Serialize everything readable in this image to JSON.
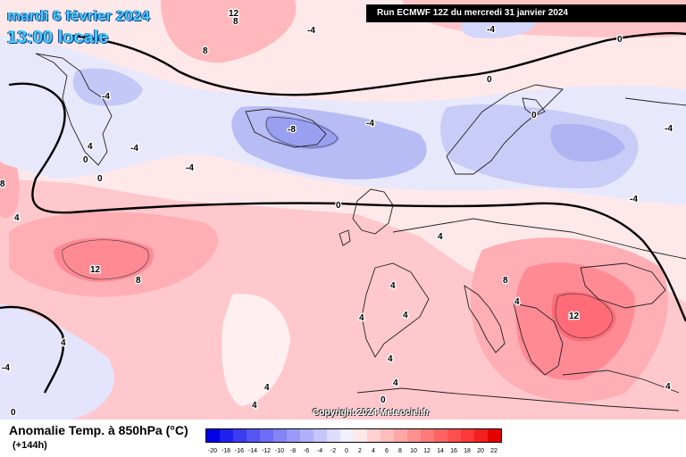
{
  "title": {
    "date": "mardi 6 février 2024",
    "local_time": "13:00 locale"
  },
  "run_info": "Run ECMWF 12Z du mercredi 31 janvier 2024",
  "copyright": "Copyright 2024 Meteociel.fr",
  "legend": {
    "title": "Anomalie Temp. à 850hPa (°C)",
    "subtitle": "(+144h)",
    "ticks": [
      "-20",
      "-18",
      "-16",
      "-14",
      "-12",
      "-10",
      "-8",
      "-6",
      "-4",
      "-2",
      "0",
      "2",
      "4",
      "6",
      "8",
      "10",
      "12",
      "14",
      "16",
      "18",
      "20",
      "22"
    ],
    "colors": [
      "#0000e6",
      "#2020ee",
      "#3c3cf0",
      "#5555f2",
      "#6c6cf4",
      "#8484f6",
      "#9a9af8",
      "#b0b0fa",
      "#c6c6fc",
      "#dcdcfe",
      "#f0f0ff",
      "#ffe8e8",
      "#ffd2d2",
      "#ffbcbc",
      "#ffa6a6",
      "#ff9090",
      "#ff7a7a",
      "#ff6464",
      "#ff4e4e",
      "#ff3838",
      "#f52020",
      "#e60000"
    ]
  },
  "colors": {
    "title_text": "#3fd0ff",
    "run_box_bg": "#000000",
    "warm_anomaly": "#ff8a8a",
    "cold_anomaly": "#9aa0f0"
  },
  "contour_labels": [
    "12",
    "8",
    "4",
    "-4",
    "0",
    "-8",
    "-4",
    "0",
    "4",
    "8",
    "12",
    "4",
    "0",
    "-4",
    "-4",
    "0",
    "-4",
    "12",
    "8",
    "4",
    "4",
    "4",
    "0",
    "4",
    "4",
    "-4",
    "0",
    "12",
    "8",
    "4",
    "0",
    "4",
    "-4",
    "0",
    "4",
    "-4",
    "-4",
    "4",
    "0",
    "4",
    "8"
  ],
  "map": {
    "variable": "850hPa temperature anomaly",
    "contour_interval": "4"
  }
}
